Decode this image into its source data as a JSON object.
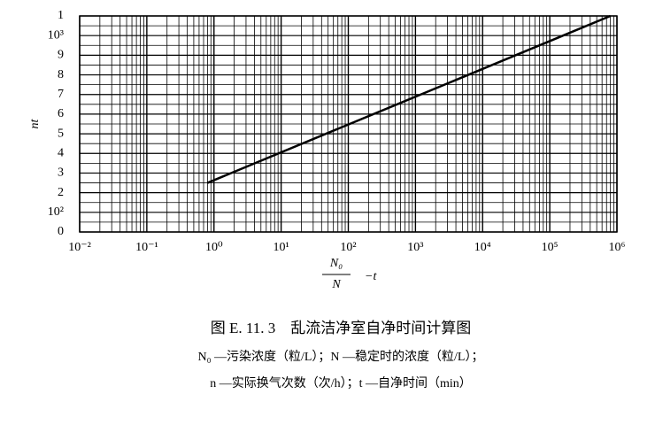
{
  "chart_data": {
    "type": "line",
    "ylabel": "nt",
    "xlabel": {
      "numerator": "N₀",
      "denominator": "N",
      "suffix": "−t"
    },
    "x": [
      0.8,
      800000
    ],
    "series": [
      {
        "values": [
          250,
          1100
        ],
        "color": "#000000"
      }
    ],
    "xscale": "log",
    "xlim": [
      0.01,
      1000000
    ],
    "xticks": [
      {
        "value": 0.01,
        "label": "10⁻²"
      },
      {
        "value": 0.1,
        "label": "10⁻¹"
      },
      {
        "value": 1,
        "label": "10⁰"
      },
      {
        "value": 10,
        "label": "10¹"
      },
      {
        "value": 100,
        "label": "10²"
      },
      {
        "value": 1000,
        "label": "10³"
      },
      {
        "value": 10000,
        "label": "10⁴"
      },
      {
        "value": 100000,
        "label": "10⁵"
      },
      {
        "value": 1000000,
        "label": "10⁶"
      }
    ],
    "ylim": [
      0,
      1100
    ],
    "yticks": [
      0,
      {
        "value": 100,
        "label": "10²"
      },
      {
        "value": 200,
        "label": "2"
      },
      {
        "value": 300,
        "label": "3"
      },
      {
        "value": 400,
        "label": "4"
      },
      {
        "value": 500,
        "label": "5"
      },
      {
        "value": 600,
        "label": "6"
      },
      {
        "value": 700,
        "label": "7"
      },
      {
        "value": 800,
        "label": "8"
      },
      {
        "value": 900,
        "label": "9"
      },
      {
        "value": 1000,
        "label": "10³"
      },
      {
        "value": 1100,
        "label": "1"
      }
    ],
    "grid": true,
    "minor_grid": true,
    "caption": [
      "图 E. 11. 3　乱流洁净室自净时间计算图",
      "N₀ —污染浓度（粒/L）；N —稳定时的浓度（粒/L）；",
      "n —实际换气次数（次/h）；t —自净时间（min）"
    ]
  }
}
